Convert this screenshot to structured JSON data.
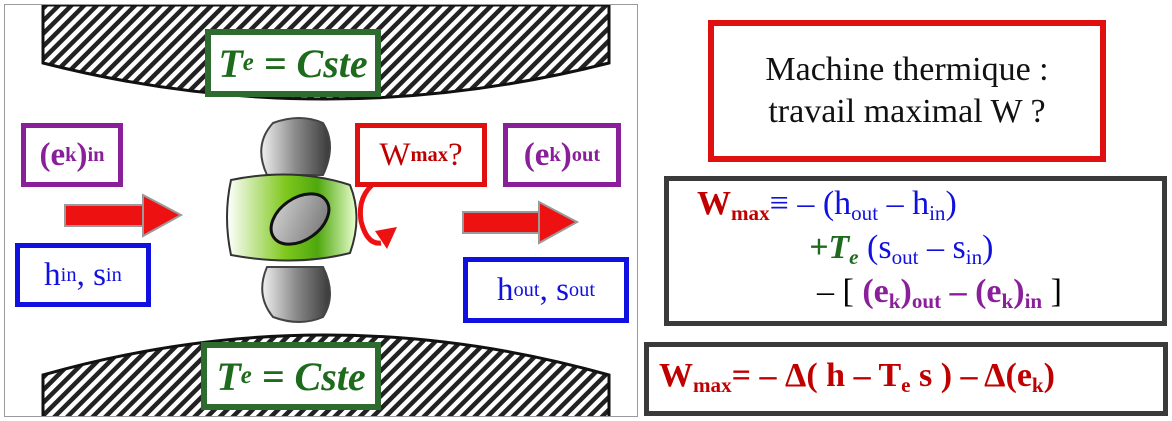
{
  "left": {
    "temp_top": {
      "T": "T",
      "sub": "e",
      "eq": "= Cste"
    },
    "temp_bottom": {
      "T": "T",
      "sub": "e",
      "eq": "= Cste"
    },
    "ek_in": {
      "open": "(e",
      "sub": "k",
      "close": ")",
      "subscript": "in"
    },
    "ek_out": {
      "open": "(e",
      "sub": "k",
      "close": ")",
      "subscript": "out"
    },
    "wmax_box": {
      "W": "W",
      "sub": "max",
      "q": "?"
    },
    "h_in": {
      "h": "h",
      "hsub": "in",
      "sep": ", s",
      "ssub": "in"
    },
    "h_out": {
      "h": "h",
      "hsub": "out",
      "sep": ", s",
      "ssub": "out"
    }
  },
  "right": {
    "title_line1": "Machine thermique :",
    "title_line2": "travail maximal W ?",
    "eq1": {
      "W": "W",
      "Wsub": "max",
      "op": "≡ – (h",
      "a": "out",
      "mid": " – h",
      "b": "in",
      "end": ")"
    },
    "eq2": {
      "plus": "+",
      "T": "T",
      "Tsub": "e",
      "open": " (s",
      "a": "out",
      "mid": " – s",
      "b": "in",
      "end": ")"
    },
    "eq3": {
      "open": "– [ ",
      "e1": "(e",
      "k1": "k",
      "c1": ")",
      "o": "out",
      "minus": " – ",
      "e2": "(e",
      "k2": "k",
      "c2": ")",
      "i": "in",
      "close": " ]"
    },
    "final": {
      "W": "W",
      "Wsub": "max",
      "eq": "=  – Δ( h – T",
      "Tsub": "e",
      "s": " s ) – Δ(e",
      "k": "k",
      "end": ")"
    }
  },
  "colors": {
    "green": "#1e6b1e",
    "purple": "#8a1f9a",
    "blue": "#1010e0",
    "red": "#e01010",
    "darkred": "#c00000",
    "arrow": "#ee1111",
    "dark": "#3a3a3a"
  }
}
